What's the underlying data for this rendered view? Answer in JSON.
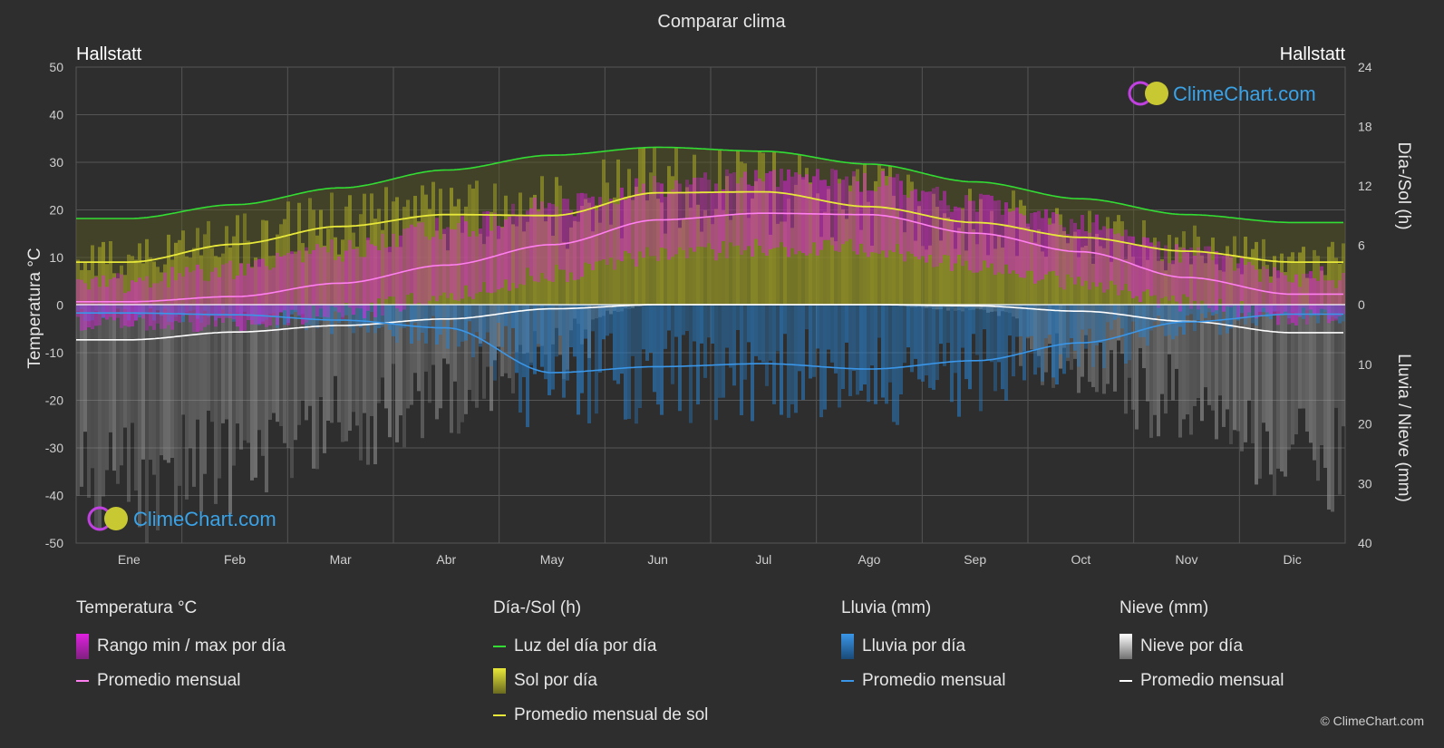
{
  "title": "Comparar clima",
  "location_left": "Hallstatt",
  "location_right": "Hallstatt",
  "axis_left_label": "Temperatura °C",
  "axis_right_top_label": "Día-/Sol (h)",
  "axis_right_bottom_label": "Lluvia / Nieve (mm)",
  "watermark": "ClimeChart.com",
  "copyright": "© ClimeChart.com",
  "colors": {
    "background": "#2e2e2e",
    "temp_range": "#e020e0",
    "temp_avg": "#ff7ff0",
    "daylight": "#33dd33",
    "sunshine_fill": "#9a9a28",
    "sunshine_avg": "#e8e83a",
    "rain_fill": "#2a7fc8",
    "rain_avg": "#3a96e8",
    "snow_fill": "#9a9a9a",
    "snow_avg": "#ffffff",
    "grid": "#555555",
    "brand": "#3aa3e8"
  },
  "legend": {
    "temperature": {
      "header": "Temperatura °C",
      "items": [
        "Rango min / max por día",
        "Promedio mensual"
      ]
    },
    "sun": {
      "header": "Día-/Sol (h)",
      "items": [
        "Luz del día por día",
        "Sol por día",
        "Promedio mensual de sol"
      ]
    },
    "rain": {
      "header": "Lluvia (mm)",
      "items": [
        "Lluvia por día",
        "Promedio mensual"
      ]
    },
    "snow": {
      "header": "Nieve (mm)",
      "items": [
        "Nieve por día",
        "Promedio mensual"
      ]
    }
  },
  "chart_data": {
    "type": "area",
    "title": "Comparar clima",
    "categories": [
      "Ene",
      "Feb",
      "Mar",
      "Abr",
      "May",
      "Jun",
      "Jul",
      "Ago",
      "Sep",
      "Oct",
      "Nov",
      "Dic"
    ],
    "y_left": {
      "label": "Temperatura °C",
      "ylim": [
        -50,
        50
      ],
      "ticks": [
        50,
        40,
        30,
        20,
        10,
        0,
        -10,
        -20,
        -30,
        -40,
        -50
      ]
    },
    "y_right_top": {
      "label": "Día-/Sol (h)",
      "ylim": [
        0,
        24
      ],
      "ticks": [
        24,
        18,
        12,
        6,
        0
      ]
    },
    "y_right_bottom": {
      "label": "Lluvia / Nieve (mm)",
      "ylim": [
        0,
        40
      ],
      "ticks": [
        0,
        10,
        20,
        30,
        40
      ]
    },
    "grid": true,
    "series": [
      {
        "name": "Luz del día por día",
        "axis": "hours",
        "values": [
          8.7,
          10.1,
          11.8,
          13.6,
          15.1,
          15.9,
          15.5,
          14.2,
          12.4,
          10.7,
          9.1,
          8.3
        ]
      },
      {
        "name": "Promedio mensual de sol",
        "axis": "hours",
        "values": [
          4.3,
          6.1,
          7.9,
          9.1,
          9.0,
          11.3,
          11.4,
          9.9,
          8.3,
          6.8,
          5.4,
          4.3
        ]
      },
      {
        "name": "Promedio mensual",
        "axis": "temperature",
        "description_key": "temp_avg",
        "values": [
          0.7,
          1.8,
          4.6,
          8.4,
          12.7,
          17.9,
          19.3,
          19.0,
          15.1,
          11.2,
          5.8,
          2.3
        ]
      },
      {
        "name": "Rango min / max por día",
        "axis": "temperature",
        "min": [
          -4.0,
          -3.5,
          -1.5,
          2.0,
          6.5,
          10.5,
          12.0,
          12.0,
          8.5,
          5.0,
          0.5,
          -2.5
        ],
        "max": [
          5.0,
          7.5,
          11.5,
          16.0,
          20.5,
          25.0,
          26.5,
          26.0,
          21.5,
          17.0,
          10.5,
          6.0
        ]
      },
      {
        "name": "Promedio mensual",
        "axis": "precip",
        "description_key": "rain_avg",
        "values": [
          1.4,
          1.7,
          2.6,
          3.9,
          11.4,
          10.4,
          9.9,
          10.8,
          9.4,
          6.4,
          2.9,
          1.6
        ]
      },
      {
        "name": "Promedio mensual",
        "axis": "precip",
        "description_key": "snow_avg",
        "values": [
          5.9,
          4.6,
          3.5,
          2.4,
          0.7,
          0.0,
          0.0,
          0.0,
          0.2,
          1.1,
          2.8,
          4.7
        ]
      }
    ]
  }
}
